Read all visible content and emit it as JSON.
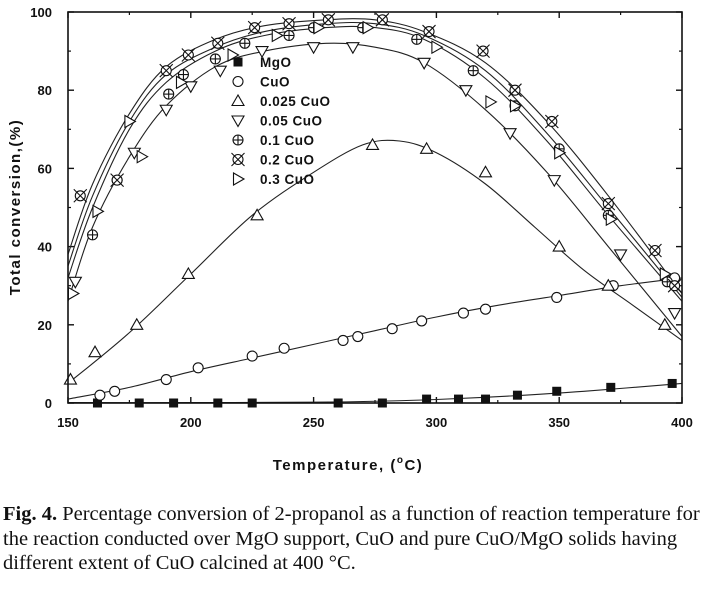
{
  "chart_data": {
    "type": "scatter",
    "xlabel": "Temperature, (",
    "xlabel_sup": "o",
    "xlabel_suffix": "C)",
    "ylabel": "Total conversion,(%)",
    "xlim": [
      150,
      400
    ],
    "ylim": [
      0,
      100
    ],
    "xticks": [
      150,
      200,
      250,
      300,
      350,
      400
    ],
    "yticks": [
      0,
      20,
      40,
      60,
      80,
      100
    ],
    "legend_position": "top-left",
    "series": [
      {
        "name": "MgO",
        "marker": "square-filled",
        "x": [
          162,
          179,
          193,
          211,
          225,
          260,
          278,
          296,
          309,
          320,
          333,
          349,
          371,
          396
        ],
        "y": [
          0,
          0,
          0,
          0,
          0,
          0,
          0,
          1,
          1,
          1,
          2,
          3,
          4,
          5
        ]
      },
      {
        "name": "CuO",
        "marker": "circle",
        "x": [
          163,
          169,
          190,
          203,
          225,
          238,
          262,
          268,
          282,
          294,
          311,
          320,
          349,
          372,
          397
        ],
        "y": [
          2,
          3,
          6,
          9,
          12,
          14,
          16,
          17,
          19,
          21,
          23,
          24,
          27,
          30,
          32
        ]
      },
      {
        "name": "0.025 CuO",
        "marker": "triangle-up",
        "x": [
          151,
          161,
          178,
          199,
          227,
          274,
          296,
          320,
          350,
          370,
          393
        ],
        "y": [
          6,
          13,
          20,
          33,
          48,
          66,
          65,
          59,
          40,
          30,
          20
        ]
      },
      {
        "name": "0.05 CuO",
        "marker": "triangle-down",
        "x": [
          153,
          177,
          190,
          200,
          212,
          229,
          250,
          266,
          295,
          312,
          330,
          348,
          375,
          397
        ],
        "y": [
          31,
          64,
          75,
          81,
          85,
          90,
          91,
          91,
          87,
          80,
          69,
          57,
          38,
          23
        ]
      },
      {
        "name": "0.1 CuO",
        "marker": "circle-plus",
        "x": [
          160,
          170,
          191,
          197,
          210,
          222,
          240,
          250,
          270,
          292,
          315,
          332,
          350,
          370,
          394
        ],
        "y": [
          43,
          57,
          79,
          84,
          88,
          92,
          94,
          96,
          96,
          93,
          85,
          76,
          65,
          48,
          31
        ]
      },
      {
        "name": "0.2 CuO",
        "marker": "circle-x",
        "x": [
          155,
          170,
          190,
          199,
          211,
          226,
          240,
          256,
          278,
          297,
          319,
          332,
          347,
          370,
          389,
          397
        ],
        "y": [
          53,
          57,
          85,
          89,
          92,
          96,
          97,
          98,
          98,
          95,
          90,
          80,
          72,
          51,
          39,
          30
        ]
      },
      {
        "name": "0.3 CuO",
        "marker": "triangle-right",
        "x": [
          152,
          162,
          175,
          180,
          196,
          217,
          235,
          252,
          272,
          300,
          322,
          332,
          350,
          371,
          393
        ],
        "y": [
          28,
          49,
          72,
          63,
          82,
          89,
          94,
          96,
          96,
          91,
          77,
          76,
          64,
          47,
          33
        ]
      }
    ],
    "fit_curves": [
      {
        "series": "MgO",
        "x": [
          150,
          200,
          250,
          280,
          300,
          330,
          360,
          400
        ],
        "y": [
          0.1,
          0.1,
          0.2,
          0.5,
          0.9,
          1.8,
          3,
          5
        ]
      },
      {
        "series": "CuO",
        "x": [
          150,
          175,
          200,
          225,
          250,
          275,
          300,
          325,
          350,
          375,
          400
        ],
        "y": [
          1,
          4,
          8,
          11.5,
          15,
          18.5,
          22,
          25,
          27.5,
          30,
          32
        ]
      },
      {
        "series": "0.025 CuO",
        "x": [
          150,
          175,
          200,
          225,
          250,
          270,
          285,
          300,
          320,
          340,
          360,
          380,
          400
        ],
        "y": [
          5,
          18,
          33,
          48,
          59,
          66,
          67,
          64,
          56,
          45,
          34,
          25,
          16
        ]
      },
      {
        "series": "0.05 CuO",
        "x": [
          150,
          160,
          175,
          190,
          210,
          230,
          255,
          275,
          295,
          320,
          345,
          370,
          400
        ],
        "y": [
          26,
          45,
          63,
          76,
          86,
          90,
          92,
          91,
          87,
          75,
          59,
          40,
          17
        ]
      },
      {
        "series": "0.1 CuO",
        "x": [
          150,
          160,
          175,
          190,
          210,
          230,
          255,
          275,
          295,
          320,
          345,
          370,
          400
        ],
        "y": [
          32,
          50,
          70,
          82,
          90,
          94,
          96,
          96,
          93,
          83,
          67,
          48,
          26
        ]
      },
      {
        "series": "0.2 CuO",
        "x": [
          150,
          160,
          175,
          190,
          210,
          230,
          255,
          275,
          295,
          320,
          345,
          370,
          400
        ],
        "y": [
          38,
          56,
          74,
          86,
          93,
          96.5,
          98,
          98,
          95,
          87,
          72,
          53,
          28
        ]
      },
      {
        "series": "0.3 CuO",
        "x": [
          150,
          160,
          175,
          190,
          210,
          230,
          255,
          275,
          295,
          320,
          345,
          370,
          400
        ],
        "y": [
          35,
          53,
          72,
          84,
          91,
          95,
          97,
          97,
          94,
          85,
          69,
          50,
          27
        ]
      }
    ]
  },
  "caption": {
    "label": "Fig. 4.",
    "text": " Percentage conversion of 2-propanol as a function of reaction temperature for the reaction conducted over MgO support, CuO and pure CuO/MgO solids having different extent of CuO calcined at 400 °C."
  }
}
